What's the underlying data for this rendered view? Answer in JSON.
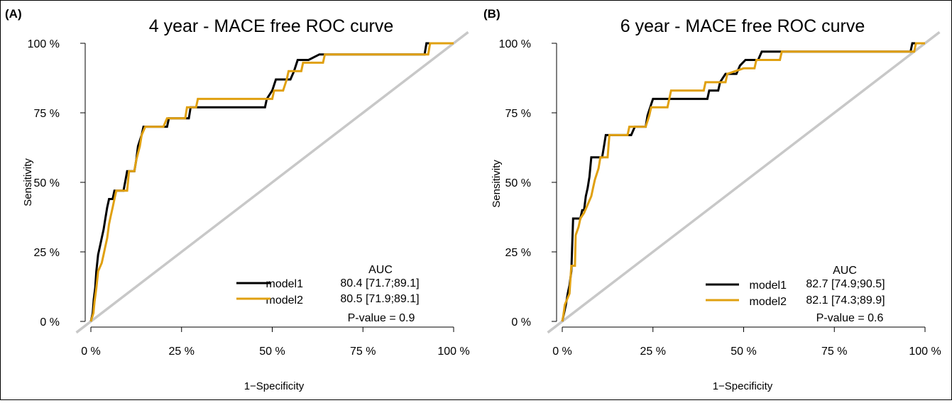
{
  "chart_data": [
    {
      "type": "line",
      "panel": "(A)",
      "title": "4 year - MACE free ROC curve",
      "xlabel": "1−Specificity",
      "ylabel": "Sensitivity",
      "xlim": [
        0,
        1
      ],
      "ylim": [
        0,
        1
      ],
      "x_ticks": [
        "0 %",
        "25 %",
        "50 %",
        "75 %",
        "100 %"
      ],
      "y_ticks": [
        "0 %",
        "25 %",
        "50 %",
        "75 %",
        "100 %"
      ],
      "reference_line": {
        "color": "#c8c8c8",
        "from": [
          0,
          0
        ],
        "to": [
          1,
          1
        ]
      },
      "legend": {
        "header": "AUC",
        "entries": [
          {
            "label": "model1",
            "auc": "80.4 [71.7;89.1]",
            "color": "#000000"
          },
          {
            "label": "model2",
            "auc": "80.5 [71.9;89.1]",
            "color": "#e0a010"
          }
        ],
        "pvalue": "P-value = 0.9",
        "placement": "bottom-right"
      },
      "series": [
        {
          "name": "model1",
          "color": "#000000",
          "points": [
            [
              0,
              0
            ],
            [
              0.005,
              0.03
            ],
            [
              0.008,
              0.08
            ],
            [
              0.012,
              0.12
            ],
            [
              0.015,
              0.18
            ],
            [
              0.02,
              0.24
            ],
            [
              0.025,
              0.27
            ],
            [
              0.03,
              0.3
            ],
            [
              0.035,
              0.33
            ],
            [
              0.04,
              0.37
            ],
            [
              0.045,
              0.41
            ],
            [
              0.05,
              0.44
            ],
            [
              0.06,
              0.44
            ],
            [
              0.065,
              0.47
            ],
            [
              0.09,
              0.47
            ],
            [
              0.1,
              0.54
            ],
            [
              0.12,
              0.54
            ],
            [
              0.125,
              0.58
            ],
            [
              0.13,
              0.63
            ],
            [
              0.14,
              0.67
            ],
            [
              0.145,
              0.7
            ],
            [
              0.21,
              0.7
            ],
            [
              0.215,
              0.73
            ],
            [
              0.27,
              0.73
            ],
            [
              0.275,
              0.77
            ],
            [
              0.48,
              0.77
            ],
            [
              0.485,
              0.8
            ],
            [
              0.5,
              0.83
            ],
            [
              0.51,
              0.87
            ],
            [
              0.55,
              0.87
            ],
            [
              0.56,
              0.9
            ],
            [
              0.57,
              0.94
            ],
            [
              0.6,
              0.94
            ],
            [
              0.63,
              0.96
            ],
            [
              0.92,
              0.96
            ],
            [
              0.925,
              1.0
            ],
            [
              1,
              1
            ]
          ]
        },
        {
          "name": "model2",
          "color": "#e0a010",
          "points": [
            [
              0,
              0
            ],
            [
              0.007,
              0.03
            ],
            [
              0.01,
              0.07
            ],
            [
              0.015,
              0.12
            ],
            [
              0.02,
              0.18
            ],
            [
              0.03,
              0.21
            ],
            [
              0.035,
              0.24
            ],
            [
              0.04,
              0.27
            ],
            [
              0.045,
              0.3
            ],
            [
              0.05,
              0.35
            ],
            [
              0.055,
              0.38
            ],
            [
              0.06,
              0.41
            ],
            [
              0.065,
              0.44
            ],
            [
              0.07,
              0.47
            ],
            [
              0.1,
              0.47
            ],
            [
              0.105,
              0.54
            ],
            [
              0.12,
              0.54
            ],
            [
              0.125,
              0.58
            ],
            [
              0.135,
              0.63
            ],
            [
              0.14,
              0.67
            ],
            [
              0.15,
              0.7
            ],
            [
              0.2,
              0.7
            ],
            [
              0.21,
              0.73
            ],
            [
              0.26,
              0.73
            ],
            [
              0.265,
              0.77
            ],
            [
              0.29,
              0.77
            ],
            [
              0.295,
              0.8
            ],
            [
              0.5,
              0.8
            ],
            [
              0.505,
              0.83
            ],
            [
              0.53,
              0.83
            ],
            [
              0.54,
              0.87
            ],
            [
              0.545,
              0.9
            ],
            [
              0.58,
              0.9
            ],
            [
              0.585,
              0.93
            ],
            [
              0.64,
              0.93
            ],
            [
              0.645,
              0.96
            ],
            [
              0.93,
              0.96
            ],
            [
              0.935,
              1.0
            ],
            [
              1,
              1
            ]
          ]
        }
      ]
    },
    {
      "type": "line",
      "panel": "(B)",
      "title": "6 year - MACE free ROC curve",
      "xlabel": "1−Specificity",
      "ylabel": "Sensitivity",
      "xlim": [
        0,
        1
      ],
      "ylim": [
        0,
        1
      ],
      "x_ticks": [
        "0 %",
        "25 %",
        "50 %",
        "75 %",
        "100 %"
      ],
      "y_ticks": [
        "0 %",
        "25 %",
        "50 %",
        "75 %",
        "100 %"
      ],
      "reference_line": {
        "color": "#c8c8c8",
        "from": [
          0,
          0
        ],
        "to": [
          1,
          1
        ]
      },
      "legend": {
        "header": "AUC",
        "entries": [
          {
            "label": "model1",
            "auc": "82.7 [74.9;90.5]",
            "color": "#000000"
          },
          {
            "label": "model2",
            "auc": "82.1 [74.3;89.9]",
            "color": "#e0a010"
          }
        ],
        "pvalue": "P-value = 0.6",
        "placement": "bottom-right"
      },
      "series": [
        {
          "name": "model1",
          "color": "#000000",
          "points": [
            [
              0,
              0
            ],
            [
              0.005,
              0.03
            ],
            [
              0.01,
              0.06
            ],
            [
              0.015,
              0.1
            ],
            [
              0.02,
              0.13
            ],
            [
              0.025,
              0.18
            ],
            [
              0.03,
              0.37
            ],
            [
              0.05,
              0.37
            ],
            [
              0.055,
              0.4
            ],
            [
              0.06,
              0.4
            ],
            [
              0.065,
              0.45
            ],
            [
              0.07,
              0.48
            ],
            [
              0.075,
              0.52
            ],
            [
              0.08,
              0.59
            ],
            [
              0.11,
              0.59
            ],
            [
              0.115,
              0.63
            ],
            [
              0.12,
              0.67
            ],
            [
              0.19,
              0.67
            ],
            [
              0.2,
              0.7
            ],
            [
              0.23,
              0.7
            ],
            [
              0.235,
              0.74
            ],
            [
              0.245,
              0.78
            ],
            [
              0.25,
              0.8
            ],
            [
              0.4,
              0.8
            ],
            [
              0.405,
              0.83
            ],
            [
              0.43,
              0.83
            ],
            [
              0.435,
              0.86
            ],
            [
              0.45,
              0.89
            ],
            [
              0.48,
              0.89
            ],
            [
              0.49,
              0.92
            ],
            [
              0.505,
              0.94
            ],
            [
              0.54,
              0.94
            ],
            [
              0.55,
              0.97
            ],
            [
              0.96,
              0.97
            ],
            [
              0.965,
              1.0
            ],
            [
              1,
              1
            ]
          ]
        },
        {
          "name": "model2",
          "color": "#e0a010",
          "points": [
            [
              0,
              0
            ],
            [
              0.003,
              0.02
            ],
            [
              0.007,
              0.06
            ],
            [
              0.02,
              0.1
            ],
            [
              0.025,
              0.2
            ],
            [
              0.035,
              0.2
            ],
            [
              0.037,
              0.31
            ],
            [
              0.045,
              0.34
            ],
            [
              0.05,
              0.37
            ],
            [
              0.06,
              0.39
            ],
            [
              0.07,
              0.42
            ],
            [
              0.08,
              0.45
            ],
            [
              0.085,
              0.48
            ],
            [
              0.09,
              0.51
            ],
            [
              0.1,
              0.55
            ],
            [
              0.105,
              0.59
            ],
            [
              0.125,
              0.59
            ],
            [
              0.13,
              0.67
            ],
            [
              0.18,
              0.67
            ],
            [
              0.185,
              0.7
            ],
            [
              0.23,
              0.7
            ],
            [
              0.24,
              0.74
            ],
            [
              0.245,
              0.77
            ],
            [
              0.29,
              0.77
            ],
            [
              0.3,
              0.83
            ],
            [
              0.39,
              0.83
            ],
            [
              0.395,
              0.86
            ],
            [
              0.45,
              0.86
            ],
            [
              0.455,
              0.89
            ],
            [
              0.5,
              0.91
            ],
            [
              0.53,
              0.91
            ],
            [
              0.535,
              0.94
            ],
            [
              0.6,
              0.94
            ],
            [
              0.605,
              0.97
            ],
            [
              0.97,
              0.97
            ],
            [
              0.975,
              1.0
            ],
            [
              1,
              1
            ]
          ]
        }
      ]
    }
  ]
}
